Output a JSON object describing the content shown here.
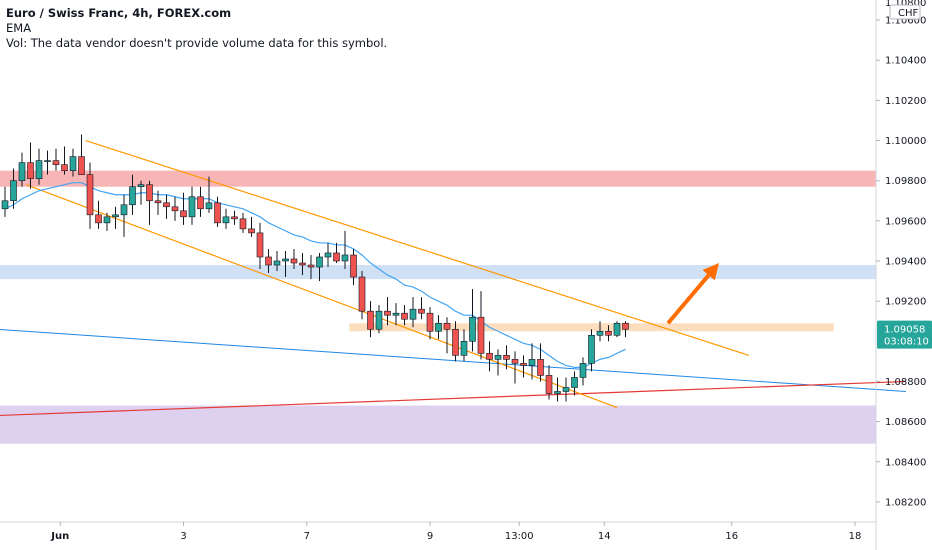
{
  "legend": {
    "title": "Euro / Swiss Franc, 4h, FOREX.com",
    "indicator": "EMA",
    "volume_note": "Vol: The data vendor doesn't provide volume data for this symbol."
  },
  "currency_label": "CHF",
  "price_tag": {
    "price": "1.09058",
    "countdown": "03:08:10",
    "color": "#26a69a"
  },
  "colors": {
    "up": "#26a69a",
    "down": "#ef5350",
    "wick": "#131722",
    "channel": "#ff9800",
    "ema": "#42a5f5",
    "trend_long": "#1e88e5",
    "trend_red": "#e53935",
    "arrow": "#ff6d00",
    "zone_red": "#f7a8a8",
    "zone_blue": "#c8daf3",
    "zone_orange": "#fcd8b4",
    "zone_purple": "#d8c8ec"
  },
  "chart_data": {
    "type": "candlestick",
    "symbol": "Euro / Swiss Franc",
    "timeframe": "4h",
    "ylim": [
      1.081,
      1.107
    ],
    "y_ticks": [
      "1.10600",
      "1.10400",
      "1.10200",
      "1.10000",
      "1.09800",
      "1.09600",
      "1.09400",
      "1.09200",
      "1.08800",
      "1.08600",
      "1.08400",
      "1.08200"
    ],
    "y_top_partial": "1.10800",
    "x_ticks": [
      "Jun",
      "3",
      "7",
      "9",
      "13:00",
      "14",
      "16",
      "18"
    ],
    "x_tick_bars": [
      6.5,
      21,
      35.5,
      50,
      60.5,
      70.5,
      85.5,
      100
    ],
    "bar_count_axis": 105,
    "candles": [
      [
        1.0966,
        1.0977,
        1.0962,
        1.097
      ],
      [
        1.097,
        1.0986,
        1.0966,
        1.098
      ],
      [
        1.098,
        1.0994,
        1.0977,
        1.0989
      ],
      [
        1.0989,
        1.0999,
        1.0976,
        1.0981
      ],
      [
        1.0981,
        1.0996,
        1.0978,
        1.099
      ],
      [
        1.099,
        1.0995,
        1.0983,
        1.099
      ],
      [
        1.099,
        1.0996,
        1.0985,
        1.0988
      ],
      [
        1.0988,
        1.0997,
        1.0983,
        1.0985
      ],
      [
        1.0985,
        1.0996,
        1.0982,
        1.0992
      ],
      [
        1.0992,
        1.1003,
        1.0985,
        1.0983
      ],
      [
        1.0983,
        1.0989,
        1.0956,
        1.0963
      ],
      [
        1.0963,
        1.097,
        1.0956,
        1.0959
      ],
      [
        1.0959,
        1.0964,
        1.0955,
        1.0962
      ],
      [
        1.0962,
        1.0967,
        1.0956,
        1.0963
      ],
      [
        1.0963,
        1.0973,
        1.0952,
        1.0968
      ],
      [
        1.0968,
        1.0983,
        1.0963,
        1.0977
      ],
      [
        1.0977,
        1.098,
        1.0968,
        1.0978
      ],
      [
        1.0978,
        1.098,
        1.0958,
        1.097
      ],
      [
        1.097,
        1.0975,
        1.0963,
        1.0969
      ],
      [
        1.0969,
        1.0973,
        1.0961,
        1.0967
      ],
      [
        1.0967,
        1.0972,
        1.096,
        1.0965
      ],
      [
        1.0965,
        1.0974,
        1.0958,
        1.0962
      ],
      [
        1.0962,
        1.0977,
        1.0958,
        1.0972
      ],
      [
        1.0972,
        1.0977,
        1.0962,
        1.0966
      ],
      [
        1.0966,
        1.0982,
        1.0964,
        1.0969
      ],
      [
        1.0969,
        1.0972,
        1.0957,
        1.0959
      ],
      [
        1.0959,
        1.0966,
        1.0956,
        1.0962
      ],
      [
        1.0962,
        1.0965,
        1.0958,
        1.0961
      ],
      [
        1.0961,
        1.0964,
        1.0954,
        1.0956
      ],
      [
        1.0956,
        1.0962,
        1.0952,
        1.0954
      ],
      [
        1.0954,
        1.0959,
        1.0936,
        1.0942
      ],
      [
        1.0942,
        1.0946,
        1.0934,
        1.0938
      ],
      [
        1.0938,
        1.0945,
        1.0935,
        1.094
      ],
      [
        1.094,
        1.0945,
        1.0932,
        1.0941
      ],
      [
        1.0941,
        1.0946,
        1.0936,
        1.0939
      ],
      [
        1.0939,
        1.0944,
        1.0933,
        1.0938
      ],
      [
        1.0938,
        1.0943,
        1.0931,
        1.0937
      ],
      [
        1.0937,
        1.0944,
        1.093,
        1.0942
      ],
      [
        1.0942,
        1.0949,
        1.0937,
        1.0944
      ],
      [
        1.0944,
        1.0949,
        1.0939,
        1.094
      ],
      [
        1.094,
        1.0955,
        1.0936,
        1.0943
      ],
      [
        1.0943,
        1.0946,
        1.0928,
        1.0932
      ],
      [
        1.0932,
        1.0935,
        1.0911,
        1.0915
      ],
      [
        1.0915,
        1.092,
        1.0902,
        1.0906
      ],
      [
        1.0906,
        1.0918,
        1.0904,
        1.0915
      ],
      [
        1.0915,
        1.0922,
        1.0908,
        1.0913
      ],
      [
        1.0913,
        1.0919,
        1.0908,
        1.0914
      ],
      [
        1.0914,
        1.0918,
        1.0908,
        1.0911
      ],
      [
        1.0911,
        1.0922,
        1.0907,
        1.0916
      ],
      [
        1.0916,
        1.0922,
        1.0911,
        1.0914
      ],
      [
        1.0914,
        1.0917,
        1.0901,
        1.0905
      ],
      [
        1.0905,
        1.0913,
        1.0901,
        1.0909
      ],
      [
        1.0909,
        1.0912,
        1.0894,
        1.0906
      ],
      [
        1.0906,
        1.091,
        1.089,
        1.0893
      ],
      [
        1.0893,
        1.0906,
        1.089,
        1.09
      ],
      [
        1.09,
        1.0926,
        1.0895,
        1.0912
      ],
      [
        1.0912,
        1.0925,
        1.0891,
        1.0894
      ],
      [
        1.0894,
        1.09,
        1.0885,
        1.0891
      ],
      [
        1.0891,
        1.0896,
        1.0883,
        1.0893
      ],
      [
        1.0893,
        1.0898,
        1.0886,
        1.0891
      ],
      [
        1.0891,
        1.0895,
        1.0879,
        1.0889
      ],
      [
        1.0889,
        1.0893,
        1.0882,
        1.0888
      ],
      [
        1.0888,
        1.0899,
        1.0881,
        1.0891
      ],
      [
        1.0891,
        1.0899,
        1.088,
        1.0883
      ],
      [
        1.0883,
        1.0888,
        1.0871,
        1.0874
      ],
      [
        1.0874,
        1.0882,
        1.087,
        1.0875
      ],
      [
        1.0875,
        1.0882,
        1.087,
        1.0877
      ],
      [
        1.0877,
        1.0885,
        1.0873,
        1.0882
      ],
      [
        1.0882,
        1.0892,
        1.0878,
        1.0889
      ],
      [
        1.0889,
        1.0906,
        1.0885,
        1.0903
      ],
      [
        1.0903,
        1.091,
        1.09,
        1.0905
      ],
      [
        1.0905,
        1.0908,
        1.09,
        1.0903
      ],
      [
        1.0903,
        1.091,
        1.0902,
        1.0909
      ],
      [
        1.0909,
        1.091,
        1.0902,
        1.0906
      ]
    ],
    "ema": [
      1.0966,
      1.0968,
      1.0971,
      1.0973,
      1.0975,
      1.0976,
      1.0977,
      1.0978,
      1.0979,
      1.0979,
      1.0977,
      1.0975,
      1.0974,
      1.0973,
      1.0973,
      1.0973,
      1.0974,
      1.0974,
      1.0973,
      1.0973,
      1.0972,
      1.0971,
      1.0971,
      1.0971,
      1.0971,
      1.0969,
      1.0968,
      1.0967,
      1.0966,
      1.0964,
      1.0962,
      1.0959,
      1.0957,
      1.0955,
      1.0953,
      1.0952,
      1.095,
      1.0949,
      1.0949,
      1.0948,
      1.0948,
      1.0946,
      1.0943,
      1.0939,
      1.0936,
      1.0933,
      1.0931,
      1.0928,
      1.0927,
      1.0925,
      1.0922,
      1.092,
      1.0918,
      1.0915,
      1.0913,
      1.0913,
      1.091,
      1.0907,
      1.0905,
      1.0903,
      1.0901,
      1.0899,
      1.0898,
      1.0896,
      1.0893,
      1.089,
      1.0888,
      1.0887,
      1.0887,
      1.0889,
      1.0891,
      1.0892,
      1.0894,
      1.0896
    ],
    "channel_upper": [
      [
        9.5,
        1.1
      ],
      [
        87.5,
        1.0893
      ]
    ],
    "channel_lower": [
      [
        2.5,
        1.0978
      ],
      [
        72,
        1.0867
      ]
    ],
    "trendline_long": [
      [
        -1,
        1.0906
      ],
      [
        106,
        1.0875
      ]
    ],
    "trendline_red": [
      [
        -1,
        1.0863
      ],
      [
        106,
        1.088
      ]
    ],
    "zones": [
      {
        "name": "red",
        "from": 1.0977,
        "to": 1.0985,
        "x0": -1,
        "x1": 106
      },
      {
        "name": "blue",
        "from": 1.0931,
        "to": 1.0938,
        "x0": -1,
        "x1": 106
      },
      {
        "name": "orange",
        "from": 1.0905,
        "to": 1.0909,
        "x0": 40.5,
        "x1": 97.5
      },
      {
        "name": "purple",
        "from": 1.0849,
        "to": 1.0868,
        "x0": -1,
        "x1": 106
      }
    ],
    "arrow": {
      "from": [
        78,
        1.0909
      ],
      "to": [
        84,
        1.0939
      ]
    }
  }
}
